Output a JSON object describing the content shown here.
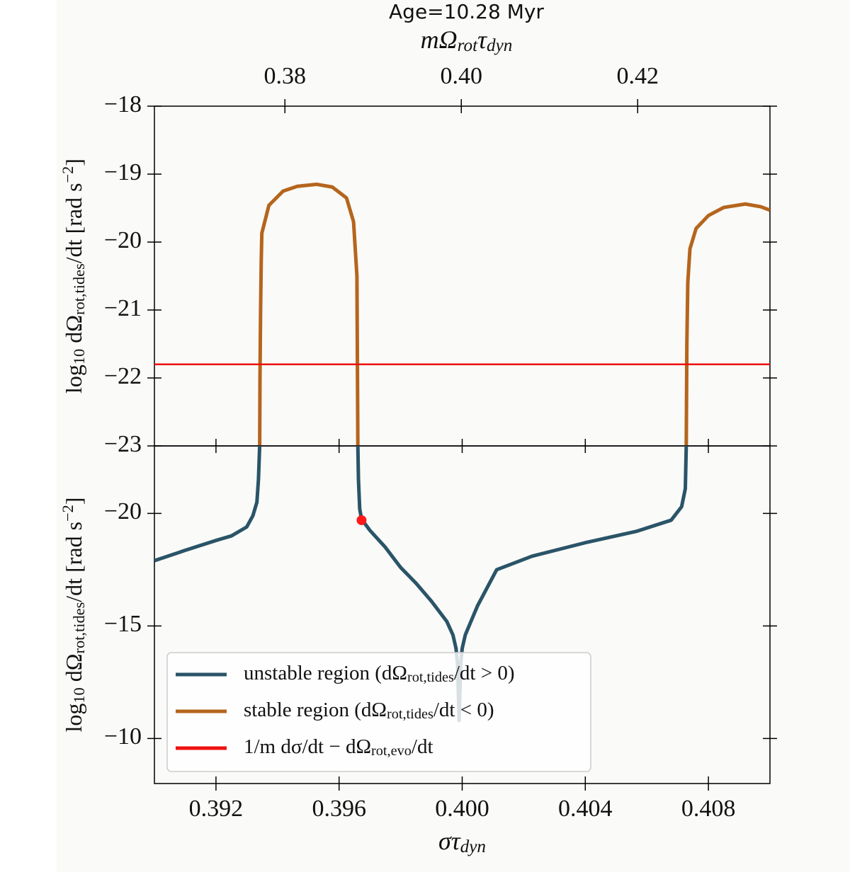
{
  "chart_data": [
    {
      "type": "line",
      "title": "Age=10.28 Myr",
      "x2label": [
        "mΩ",
        {
          "sub": "rot"
        },
        "τ",
        {
          "sub": "dyn"
        }
      ],
      "ylabel": [
        "log",
        {
          "sub": "10"
        },
        " dΩ",
        {
          "sub": "rot,tides"
        },
        "/dt [rad s",
        {
          "sup": "−2"
        },
        "]"
      ],
      "xlim": [
        0.39,
        0.41
      ],
      "x2lim": [
        0.3652,
        0.435
      ],
      "x2ticks": [
        0.38,
        {
          "value": 0.4,
          "label": "0.40"
        },
        0.42
      ],
      "ylim": [
        -23,
        -18
      ],
      "yticks": [
        {
          "value": -18,
          "label": "−18"
        },
        {
          "value": -19,
          "label": "−19"
        },
        {
          "value": -20,
          "label": "−20"
        },
        {
          "value": -21,
          "label": "−21"
        },
        {
          "value": -22,
          "label": "−22"
        },
        {
          "value": -23,
          "label": "−23"
        }
      ],
      "series": [
        {
          "name": [
            "stable region (dΩ",
            {
              "sub": "rot,tides"
            },
            "/dt < 0)"
          ],
          "color": "#b5651d",
          "x": [
            0.39342,
            0.39343,
            0.39345,
            0.39347,
            0.39349,
            0.39372,
            0.39418,
            0.39464,
            0.39528,
            0.39578,
            0.39624,
            0.39647,
            0.39658,
            0.39661,
            null,
            0.40728,
            0.4073,
            0.40733,
            0.4074,
            0.4076,
            0.408,
            0.4085,
            0.4092,
            0.4097,
            0.41
          ],
          "values": [
            -23,
            -22,
            -21,
            -20.3,
            -19.87,
            -19.46,
            -19.25,
            -19.18,
            -19.15,
            -19.19,
            -19.35,
            -19.7,
            -20.5,
            -23,
            null,
            -23,
            -21.5,
            -20.6,
            -20.1,
            -19.8,
            -19.61,
            -19.49,
            -19.44,
            -19.48,
            -19.53
          ]
        },
        {
          "name": [
            "1/m dσ/dt − dΩ",
            {
              "sub": "rot,evo"
            },
            "/dt"
          ],
          "color": "#ee1111",
          "x": [
            0.39,
            0.41
          ],
          "values": [
            -21.8,
            -21.8
          ]
        }
      ]
    },
    {
      "type": "line",
      "xlabel": [
        "στ",
        {
          "sub": "dyn"
        }
      ],
      "ylabel": [
        "log",
        {
          "sub": "10"
        },
        " dΩ",
        {
          "sub": "rot,tides"
        },
        "/dt [rad s",
        {
          "sup": "−2"
        },
        "]"
      ],
      "xlim": [
        0.39,
        0.41
      ],
      "xticks": [
        0.392,
        0.396,
        {
          "value": 0.4,
          "label": "0.400"
        },
        0.404,
        0.408
      ],
      "ylim": [
        -8,
        -23
      ],
      "yticks": [
        {
          "value": -20,
          "label": "−20"
        },
        {
          "value": -15,
          "label": "−15"
        },
        {
          "value": -10,
          "label": "−10"
        }
      ],
      "legend": "lower left",
      "series": [
        {
          "name": [
            "unstable region (dΩ",
            {
              "sub": "rot,tides"
            },
            "/dt > 0)"
          ],
          "color": "#2a5468",
          "x": [
            0.39,
            0.391,
            0.392,
            0.3925,
            0.393,
            0.3932,
            0.39333,
            0.39338,
            0.39342,
            null,
            0.39661,
            0.39663,
            0.39667,
            0.39673,
            0.397,
            0.3975,
            0.398,
            0.3985,
            0.399,
            0.3995,
            0.3997,
            0.3998,
            0.39985,
            0.3999,
            0.39995,
            0.4,
            0.4001,
            0.4003,
            0.4005,
            0.40112,
            0.40227,
            0.404,
            0.40565,
            0.40679,
            0.40713,
            0.40725,
            0.40728
          ],
          "values": [
            -17.9,
            -18.36,
            -18.8,
            -19.0,
            -19.4,
            -19.9,
            -20.5,
            -21.5,
            -23,
            null,
            -23,
            -21.5,
            -20.2,
            -19.75,
            -19.25,
            -18.5,
            -17.6,
            -16.9,
            -16.1,
            -15.2,
            -14.6,
            -14.0,
            -13.3,
            -10.8,
            -13.3,
            -14.0,
            -14.6,
            -15.25,
            -15.9,
            -17.5,
            -18.1,
            -18.7,
            -19.2,
            -19.7,
            -20.3,
            -21.1,
            -23
          ]
        }
      ],
      "marker": {
        "x": 0.39673,
        "y": -19.7,
        "color": "#ff1a1a"
      }
    }
  ]
}
